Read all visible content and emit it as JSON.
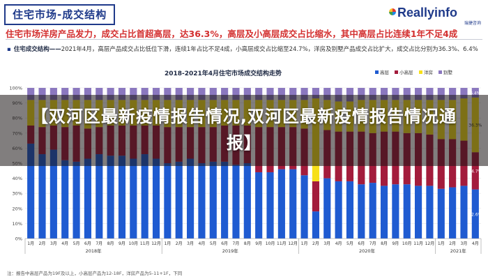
{
  "header": {
    "title": "住宅市场-成交结构"
  },
  "logo": {
    "main": "Reallyinfo",
    "sub": "瑞捷咨询"
  },
  "headline": "住宅市场洋房产品发力，成交占比首超高层，达36.3%，高层及小高层成交占比缩水，其中高层占比连续1年不足4成",
  "summary": {
    "lead": "住宅成交结构——",
    "text": "2021年4月，高层产品成交占比低位下滑，连续1年占比不足4成，小高层成交占比缩至24.7%，洋房及别墅产品成交占比扩大，成交占比分别为36.3%、6.4%"
  },
  "footnote": "注：报告中高层产品为19F及以上，小高层产品为12-18F，洋房产品为5-11+1F，下同",
  "overlay": {
    "text": "【双河区最新疫情报告情况,双河区最新疫情报告情况通报】"
  },
  "chart_data": {
    "type": "bar",
    "stacked": true,
    "title": "2018-2021年4月住宅市场成交结构走势",
    "ylim": [
      0,
      100
    ],
    "yticks": [
      "0%",
      "10%",
      "20%",
      "30%",
      "40%",
      "50%",
      "60%",
      "70%",
      "80%",
      "90%",
      "100%"
    ],
    "categories": [
      "1月",
      "2月",
      "3月",
      "4月",
      "5月",
      "6月",
      "7月",
      "8月",
      "9月",
      "10月",
      "11月",
      "12月",
      "1月",
      "2月",
      "3月",
      "4月",
      "5月",
      "6月",
      "7月",
      "8月",
      "9月",
      "10月",
      "11月",
      "12月",
      "1月",
      "2月",
      "3月",
      "4月",
      "5月",
      "6月",
      "7月",
      "8月",
      "9月",
      "10月",
      "11月",
      "12月",
      "1月",
      "2月",
      "3月",
      "4月"
    ],
    "year_groups": [
      {
        "label": "2018年",
        "start": 0,
        "count": 12
      },
      {
        "label": "2019年",
        "start": 12,
        "count": 12
      },
      {
        "label": "2020年",
        "start": 24,
        "count": 12
      },
      {
        "label": "2021年",
        "start": 36,
        "count": 4
      }
    ],
    "series": [
      {
        "name": "高层",
        "color": "#1f5bd1",
        "values": [
          63,
          56,
          59,
          52,
          51,
          53,
          56,
          55,
          55,
          53,
          56,
          53,
          50,
          51,
          53,
          50,
          51,
          51,
          49,
          50,
          44,
          44,
          46,
          46,
          42,
          18,
          40,
          38,
          38,
          36,
          37,
          35,
          36,
          36,
          35,
          35,
          33,
          34,
          35,
          32.6
        ]
      },
      {
        "name": "小高层",
        "color": "#a31c3c",
        "values": [
          12,
          18,
          16,
          22,
          24,
          20,
          18,
          20,
          20,
          22,
          19,
          22,
          24,
          23,
          21,
          24,
          23,
          24,
          26,
          25,
          30,
          30,
          28,
          28,
          31,
          20,
          32,
          33,
          33,
          35,
          33,
          36,
          35,
          34,
          35,
          34,
          33,
          32,
          30,
          24.7
        ]
      },
      {
        "name": "洋房",
        "color": "#f7e01a",
        "values": [
          17,
          18,
          17,
          18,
          17,
          19,
          18,
          17,
          17,
          17,
          17,
          17,
          18,
          18,
          18,
          18,
          18,
          17,
          17,
          17,
          18,
          18,
          18,
          18,
          19,
          55,
          20,
          20,
          20,
          21,
          22,
          21,
          21,
          22,
          22,
          23,
          26,
          26,
          28,
          36.3
        ]
      },
      {
        "name": "别墅",
        "color": "#8b78bf",
        "values": [
          8,
          8,
          8,
          8,
          8,
          8,
          8,
          8,
          8,
          8,
          8,
          8,
          8,
          8,
          8,
          8,
          8,
          8,
          8,
          8,
          8,
          8,
          8,
          8,
          8,
          7,
          8,
          9,
          9,
          8,
          8,
          8,
          8,
          8,
          8,
          8,
          8,
          8,
          7,
          6.4
        ]
      }
    ],
    "data_labels": [
      {
        "series": "高层",
        "index": 39,
        "text": "32.6%"
      },
      {
        "series": "小高层",
        "index": 39,
        "text": "24.7%"
      },
      {
        "series": "洋房",
        "index": 39,
        "text": "36.3%"
      },
      {
        "series": "别墅",
        "index": 39,
        "text": "6.4%"
      }
    ],
    "legend_position": "top-right",
    "grid": true
  }
}
